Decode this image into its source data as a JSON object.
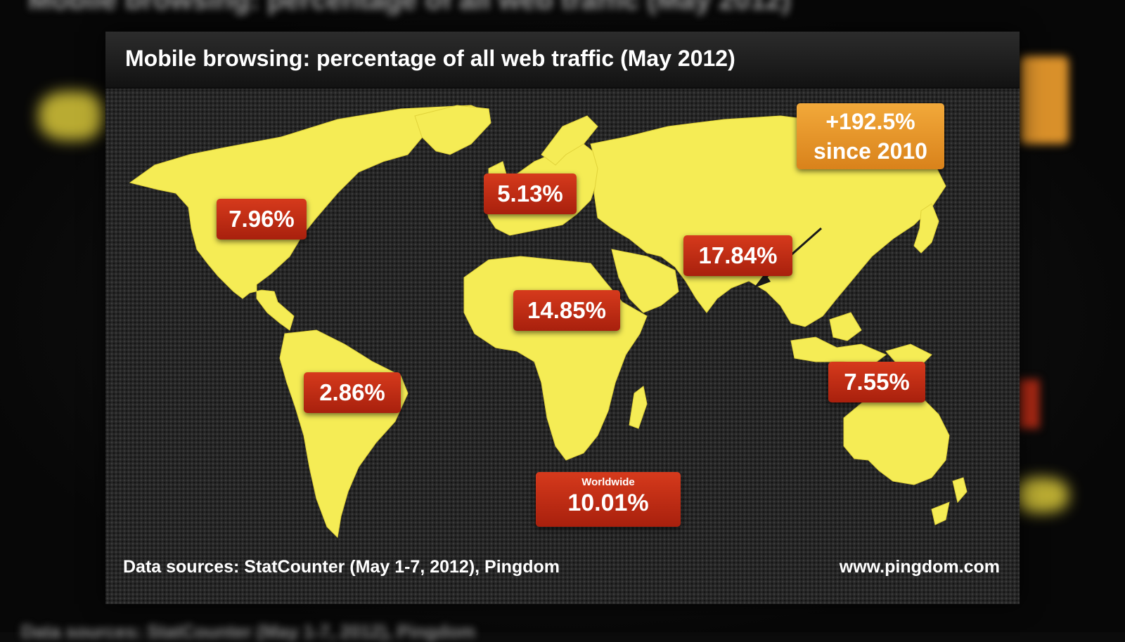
{
  "title": "Mobile browsing: percentage of all web traffic (May 2012)",
  "regions": [
    {
      "region": "North America",
      "value": "7.96%"
    },
    {
      "region": "Europe",
      "value": "5.13%"
    },
    {
      "region": "Asia",
      "value": "17.84%"
    },
    {
      "region": "Africa",
      "value": "14.85%"
    },
    {
      "region": "South America",
      "value": "2.86%"
    },
    {
      "region": "Oceania",
      "value": "7.55%"
    }
  ],
  "asia_growth": {
    "line1": "+192.5%",
    "line2": "since 2010"
  },
  "worldwide": {
    "caption": "Worldwide",
    "value": "10.01%"
  },
  "footer": {
    "sources": "Data sources: StatCounter (May 1-7, 2012), Pingdom",
    "site": "www.pingdom.com"
  },
  "colors": {
    "land": "#f5ec55",
    "label": "#c52e16",
    "highlight": "#e9951f",
    "background": "#262626"
  }
}
